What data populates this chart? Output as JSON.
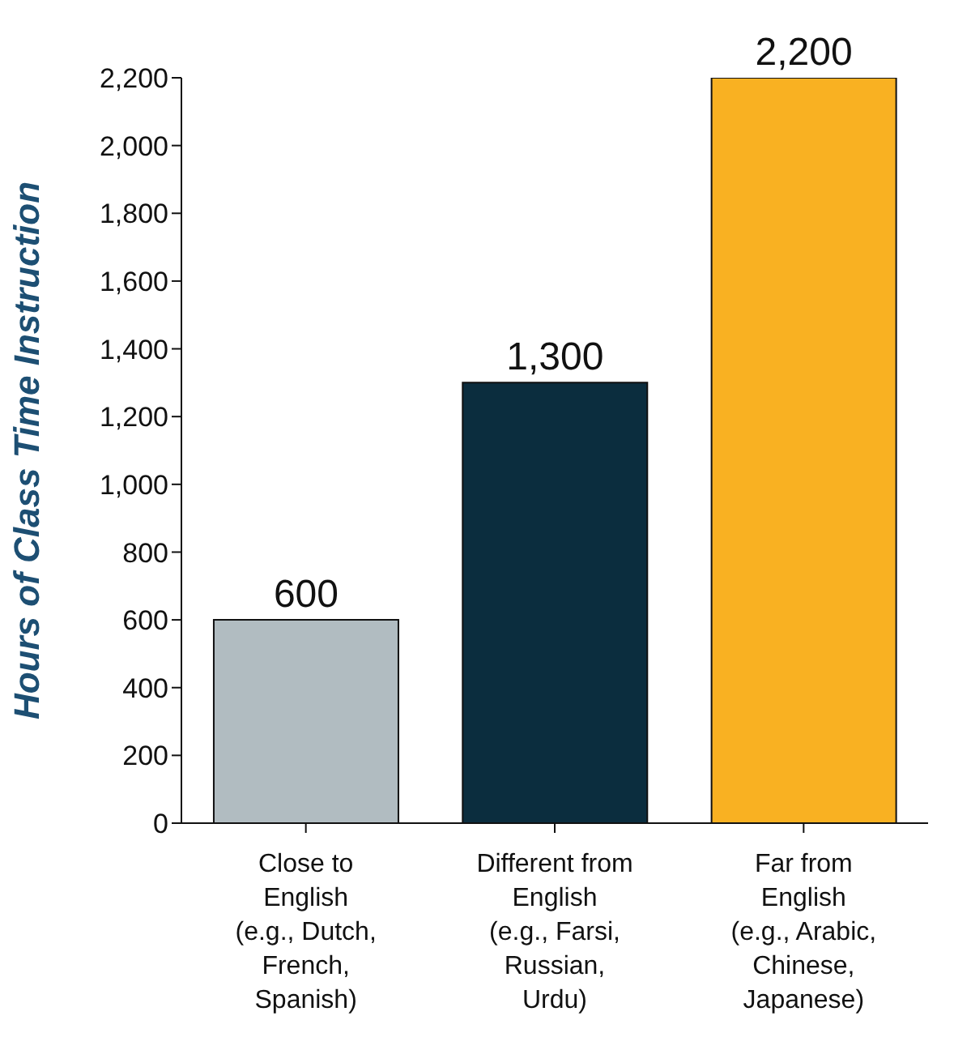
{
  "chart_data": {
    "type": "bar",
    "ylabel": "Hours of Class Time Instruction",
    "categories": [
      "Close to\nEnglish\n(e.g., Dutch,\nFrench,\nSpanish)",
      "Different from\nEnglish\n(e.g., Farsi,\nRussian,\nUrdu)",
      "Far from\nEnglish\n(e.g., Arabic,\nChinese,\nJapanese)"
    ],
    "values": [
      600,
      1300,
      2200
    ],
    "colors": [
      "#b1bcc1",
      "#0b2d3e",
      "#f9b122"
    ],
    "value_labels": [
      "600",
      "1,300",
      "2,200"
    ],
    "ylim": [
      0,
      2200
    ],
    "yticks": [
      0,
      200,
      400,
      600,
      800,
      {
        "value": 1000,
        "label": "1,000"
      },
      {
        "value": 1200,
        "label": "1,200"
      },
      {
        "value": 1400,
        "label": "1,400"
      },
      {
        "value": 1600,
        "label": "1,600"
      },
      {
        "value": 1800,
        "label": "1,800"
      },
      {
        "value": 2000,
        "label": "2,000"
      },
      {
        "value": 2200,
        "label": "2,200"
      }
    ],
    "grid": false
  }
}
